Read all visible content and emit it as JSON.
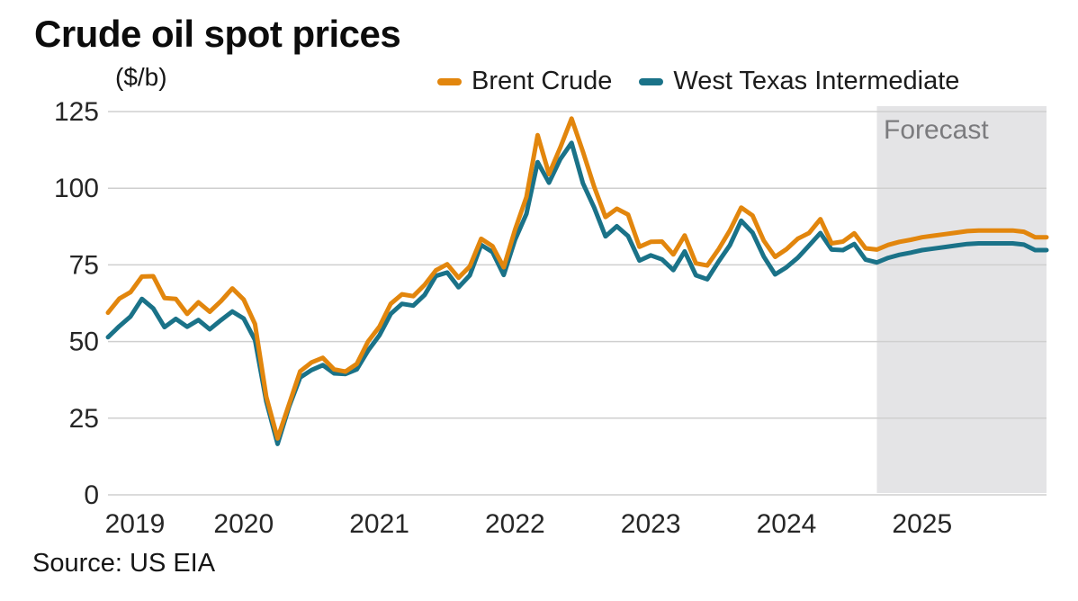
{
  "colors": {
    "brent": "#E2860D",
    "wti": "#1A7288",
    "grid": "#CFCFCF",
    "forecast_band": "#E4E4E6",
    "forecast_text": "#7B7B7E",
    "axis_text": "#262626",
    "title_text": "#0C0C0C"
  },
  "chart_data": {
    "type": "line",
    "title": "Crude oil spot prices",
    "unit_label": "($/b)",
    "source": "Source: US EIA",
    "forecast_label": "Forecast",
    "x_frequency": "monthly",
    "x_start": "2019-01",
    "x_end": "2025-12",
    "x_tick_labels": [
      "2019",
      "2020",
      "2021",
      "2022",
      "2023",
      "2024",
      "2025"
    ],
    "y_ticks": [
      0,
      25,
      50,
      75,
      100,
      125
    ],
    "ylim": [
      0,
      125
    ],
    "grid": true,
    "legend_position": "top-right",
    "forecast_start": "2024-09",
    "forecast_start_index": 68,
    "series": [
      {
        "id": "brent",
        "name": "Brent Crude",
        "color": "#E2860D",
        "values": [
          59.4,
          64.0,
          66.1,
          71.2,
          71.3,
          64.2,
          63.9,
          59.0,
          62.8,
          59.7,
          63.2,
          67.3,
          63.7,
          55.7,
          32.0,
          18.4,
          29.4,
          40.3,
          43.2,
          44.7,
          40.9,
          40.2,
          42.7,
          50.0,
          54.8,
          62.3,
          65.4,
          64.8,
          68.5,
          73.2,
          75.2,
          70.8,
          74.5,
          83.5,
          81.1,
          74.2,
          86.5,
          97.1,
          117.3,
          104.6,
          113.3,
          122.7,
          111.9,
          100.5,
          90.6,
          93.3,
          91.4,
          80.9,
          82.5,
          82.6,
          78.4,
          84.6,
          75.5,
          74.8,
          80.1,
          86.2,
          93.7,
          91.1,
          82.9,
          77.6,
          80.1,
          83.5,
          85.4,
          89.9,
          82.0,
          82.6,
          85.3,
          80.4,
          80.0,
          81.5,
          82.5,
          83.2,
          84.0,
          84.5,
          85.0,
          85.5,
          86.0,
          86.2,
          86.2,
          86.2,
          86.2,
          85.8,
          84.0,
          84.0
        ]
      },
      {
        "id": "wti",
        "name": "West Texas Intermediate",
        "color": "#1A7288",
        "values": [
          51.4,
          55.0,
          58.2,
          63.9,
          60.8,
          54.7,
          57.4,
          54.8,
          57.0,
          54.0,
          57.0,
          59.8,
          57.5,
          50.5,
          30.5,
          16.6,
          28.6,
          38.3,
          40.7,
          42.3,
          39.6,
          39.4,
          40.9,
          47.0,
          52.0,
          59.0,
          62.3,
          61.7,
          65.2,
          71.4,
          72.5,
          67.7,
          71.6,
          81.5,
          79.2,
          71.7,
          83.2,
          91.6,
          108.5,
          101.8,
          109.5,
          114.8,
          101.6,
          93.7,
          84.3,
          87.6,
          84.4,
          76.4,
          78.1,
          76.8,
          73.3,
          79.4,
          71.6,
          70.3,
          76.1,
          81.4,
          89.4,
          85.5,
          77.7,
          71.9,
          74.2,
          77.3,
          81.3,
          85.4,
          80.0,
          79.8,
          81.8,
          76.7,
          75.8,
          77.3,
          78.3,
          79.0,
          79.8,
          80.3,
          80.8,
          81.3,
          81.8,
          82.0,
          82.0,
          82.0,
          82.0,
          81.6,
          79.8,
          79.8
        ]
      }
    ]
  }
}
